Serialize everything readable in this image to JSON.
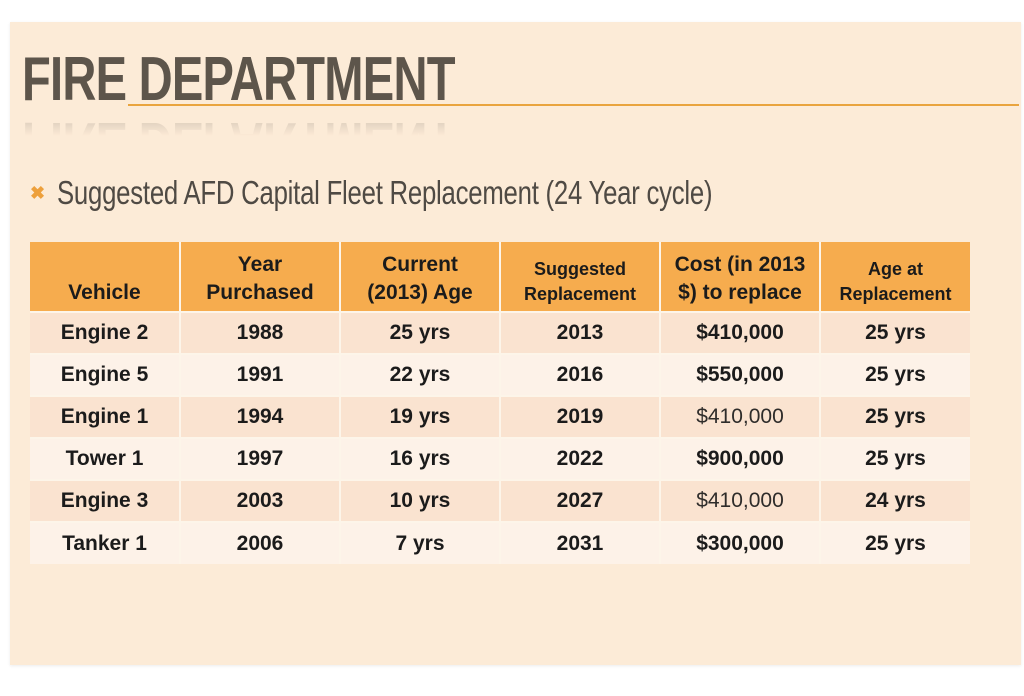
{
  "slide": {
    "title": "FIRE DEPARTMENT",
    "bullet_marker": "✖",
    "bullet_text": "Suggested AFD Capital Fleet Replacement (24 Year cycle)"
  },
  "colors": {
    "slide_background": "#fcebd7",
    "table_header_orange": "#f6ac4e",
    "row_odd_peach": "#fae3d0",
    "row_even_cream": "#fdf2e8",
    "title_text": "#5d554b",
    "bullet_text": "#4f4a44",
    "bullet_accent_orange": "#eda03c",
    "title_rule_orange": "#e9a43e",
    "table_text": "#1b1b1b"
  },
  "table": {
    "headers": [
      "Vehicle",
      "Year\nPurchased",
      "Current\n(2013) Age",
      "Suggested\nReplacement",
      "Cost (in 2013\n$) to replace",
      "Age at\nReplacement"
    ],
    "rows": [
      {
        "cells": [
          "Engine 2",
          "1988",
          "25 yrs",
          "2013",
          "$410,000",
          "25 yrs"
        ],
        "cost_weight": "bold"
      },
      {
        "cells": [
          "Engine 5",
          "1991",
          "22 yrs",
          "2016",
          "$550,000",
          "25 yrs"
        ],
        "cost_weight": "bold"
      },
      {
        "cells": [
          "Engine 1",
          "1994",
          "19 yrs",
          "2019",
          "$410,000",
          "25 yrs"
        ],
        "cost_weight": "regular"
      },
      {
        "cells": [
          "Tower 1",
          "1997",
          "16 yrs",
          "2022",
          "$900,000",
          "25 yrs"
        ],
        "cost_weight": "bold"
      },
      {
        "cells": [
          "Engine 3",
          "2003",
          "10 yrs",
          "2027",
          "$410,000",
          "24 yrs"
        ],
        "cost_weight": "regular"
      },
      {
        "cells": [
          "Tanker 1",
          "2006",
          "7 yrs",
          "2031",
          "$300,000",
          "25 yrs"
        ],
        "cost_weight": "bold"
      }
    ]
  }
}
